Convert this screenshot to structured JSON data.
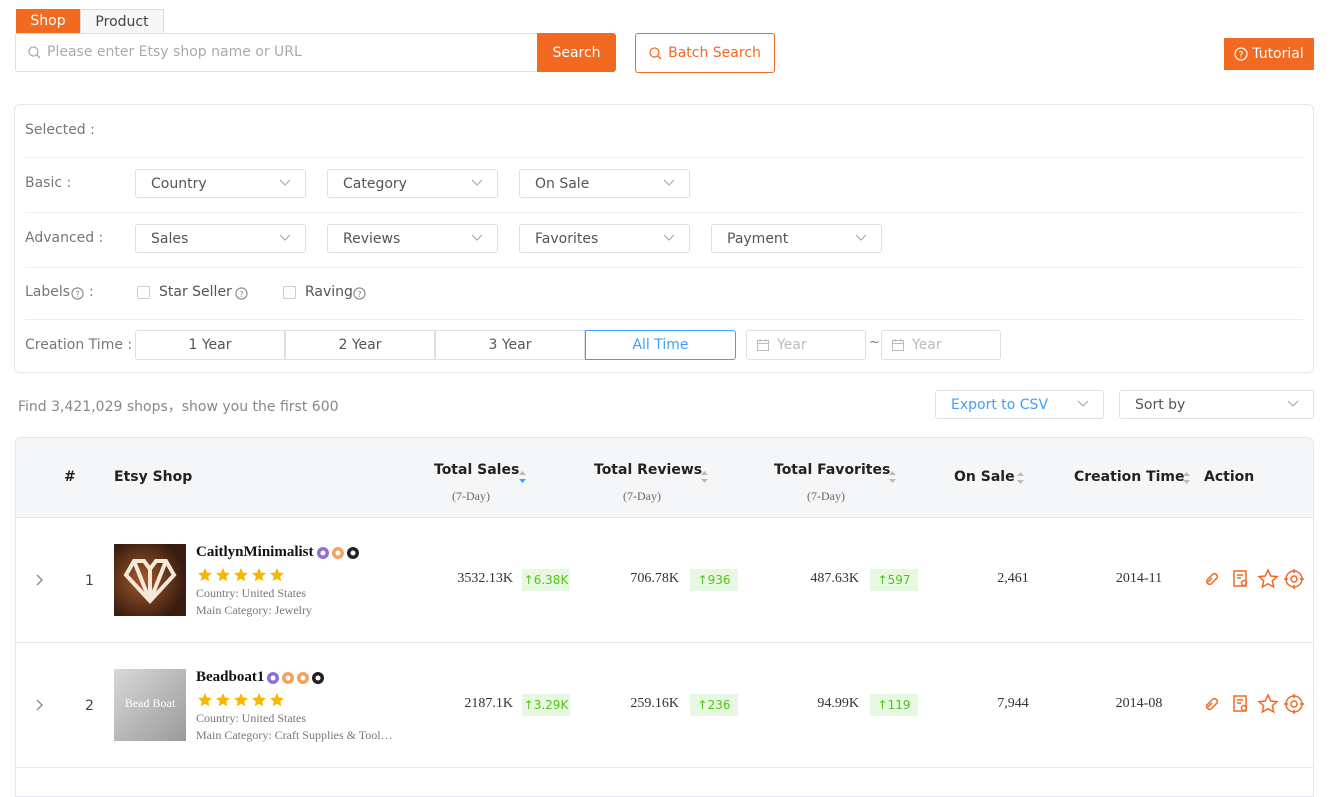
{
  "tabs": [
    "Shop",
    "Product"
  ],
  "search": {
    "placeholder": "Please enter Etsy shop name or URL",
    "button": "Search",
    "batch": "Batch Search",
    "tutorial": "Tutorial"
  },
  "filters": {
    "selected": "Selected :",
    "basic": {
      "label": "Basic :",
      "options": [
        "Country",
        "Category",
        "On Sale"
      ]
    },
    "advanced": {
      "label": "Advanced :",
      "options": [
        "Sales",
        "Reviews",
        "Favorites",
        "Payment"
      ]
    },
    "labels": {
      "label": "Labels",
      "colon": ":",
      "options": [
        "Star Seller",
        "Raving"
      ]
    },
    "creation": {
      "label": "Creation Time :",
      "options": [
        "1 Year",
        "2 Year",
        "3 Year",
        "All Time"
      ],
      "year_placeholder": "Year",
      "separator": "~"
    }
  },
  "summary": "Find 3,421,029 shops，show you the first 600",
  "export": "Export to CSV",
  "sort": "Sort by",
  "table": {
    "headers": [
      {
        "title": "#"
      },
      {
        "title": "Etsy Shop"
      },
      {
        "title": "Total Sales",
        "sub": "(7-Day)"
      },
      {
        "title": "Total Reviews",
        "sub": "(7-Day)"
      },
      {
        "title": "Total Favorites",
        "sub": "(7-Day)"
      },
      {
        "title": "On Sale"
      },
      {
        "title": "Creation Time"
      },
      {
        "title": "Action"
      }
    ],
    "rows": [
      {
        "number": "1",
        "name": "CaitlynMinimalist",
        "country": "Country: United States",
        "category": "Main Category: Jewelry",
        "sales": "3532.13K",
        "sales_change": "↑6.38K",
        "reviews": "706.78K",
        "reviews_change": "↑936",
        "favorites": "487.63K",
        "favorites_change": "↑597",
        "on_sale": "2,461",
        "created": "2014-11"
      },
      {
        "number": "2",
        "name": "Beadboat1",
        "image_text": "Bead Boat",
        "country": "Country: United States",
        "category": "Main Category: Craft Supplies & Tool…",
        "sales": "2187.1K",
        "sales_change": "↑3.29K",
        "reviews": "259.16K",
        "reviews_change": "↑236",
        "favorites": "94.99K",
        "favorites_change": "↑119",
        "on_sale": "7,944",
        "created": "2014-08"
      }
    ]
  }
}
